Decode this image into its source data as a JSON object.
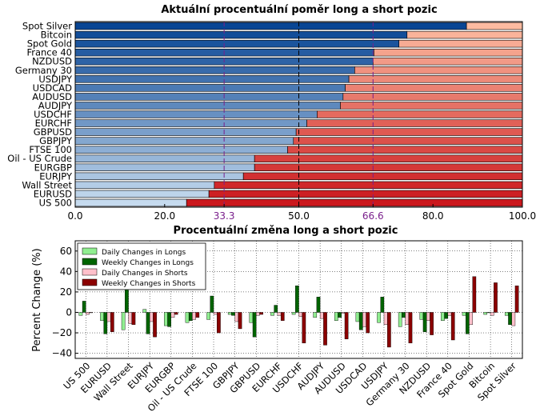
{
  "chart_data": [
    {
      "type": "bar",
      "orientation": "horizontal",
      "stacked": true,
      "title": "Aktuální procentuální poměr long a short pozic",
      "categories": [
        "Spot Silver",
        "Bitcoin",
        "Spot Gold",
        "France 40",
        "NZDUSD",
        "Germany 30",
        "USDJPY",
        "USDCAD",
        "AUDUSD",
        "AUDJPY",
        "USDCHF",
        "EURCHF",
        "GBPUSD",
        "GBPJPY",
        "FTSE 100",
        "Oil - US Crude",
        "EURGBP",
        "EURJPY",
        "Wall Street",
        "EURUSD",
        "US 500"
      ],
      "series": [
        {
          "values": [
            87.5,
            74.2,
            72.4,
            66.8,
            66.6,
            62.5,
            61.2,
            60.4,
            59.9,
            59.3,
            54.1,
            51.8,
            49.4,
            48.8,
            47.5,
            40.1,
            40.1,
            37.6,
            31.1,
            29.9,
            24.9
          ]
        },
        {
          "values": [
            12.5,
            25.8,
            27.6,
            33.2,
            33.4,
            37.5,
            38.8,
            39.6,
            40.1,
            40.7,
            45.9,
            48.2,
            50.6,
            51.2,
            52.5,
            59.9,
            59.9,
            62.4,
            68.9,
            70.1,
            75.1
          ]
        }
      ],
      "xlim": [
        0,
        100
      ],
      "xticks": [
        "0.0",
        "20.0",
        "33.3",
        "50.0",
        "66.6",
        "80.0",
        "100.0"
      ],
      "reference_lines": [
        33.3,
        50.0,
        66.6
      ]
    },
    {
      "type": "bar",
      "orientation": "vertical",
      "title": "Procentuální změna long a short pozic",
      "ylabel": "Percent Change (%)",
      "ylim": [
        -45,
        70
      ],
      "yticks": [
        "60",
        "40",
        "20",
        "0",
        "−20",
        "−40"
      ],
      "categories": [
        "US 500",
        "EURUSD",
        "Wall Street",
        "EURJPY",
        "EURGBP",
        "Oil - US Crude",
        "FTSE 100",
        "GBPJPY",
        "GBPUSD",
        "EURCHF",
        "USDCHF",
        "AUDJPY",
        "AUDUSD",
        "USDCAD",
        "USDJPY",
        "Germany 30",
        "NZDUSD",
        "France 40",
        "Spot Gold",
        "Bitcoin",
        "Spot Silver"
      ],
      "series": [
        {
          "name": "Daily Changes in Longs",
          "values": [
            -3,
            -8,
            -17,
            3,
            -13,
            -10,
            -7,
            -2,
            -10,
            -3,
            -2,
            -5,
            -8,
            -9,
            -10,
            -14,
            -7,
            -8,
            -3,
            -2,
            -3
          ]
        },
        {
          "name": "Weekly Changes in Longs",
          "values": [
            11,
            -21,
            24,
            -21,
            -14,
            -8,
            16,
            -3,
            -24,
            7,
            26,
            15,
            -5,
            -17,
            15,
            -5,
            -19,
            -6,
            -21,
            0,
            -12
          ]
        },
        {
          "name": "Daily Changes in Shorts",
          "values": [
            -2,
            -9,
            -11,
            -9,
            -5,
            -7,
            -2,
            -9,
            -3,
            -3,
            -4,
            -6,
            -1,
            -14,
            -12,
            -12,
            -8,
            -3,
            -12,
            -3,
            -13
          ]
        },
        {
          "name": "Weekly Changes in Shorts",
          "values": [
            0,
            -19,
            -12,
            -24,
            -2,
            -5,
            -20,
            -16,
            -2,
            -8,
            -30,
            -32,
            -26,
            -20,
            -34,
            -30,
            -22,
            -27,
            35,
            29,
            26
          ]
        }
      ],
      "colors": [
        "#90ee90",
        "#006400",
        "#ffc0cb",
        "#8b0000"
      ],
      "grid": true,
      "legend_position": "top-left"
    }
  ]
}
